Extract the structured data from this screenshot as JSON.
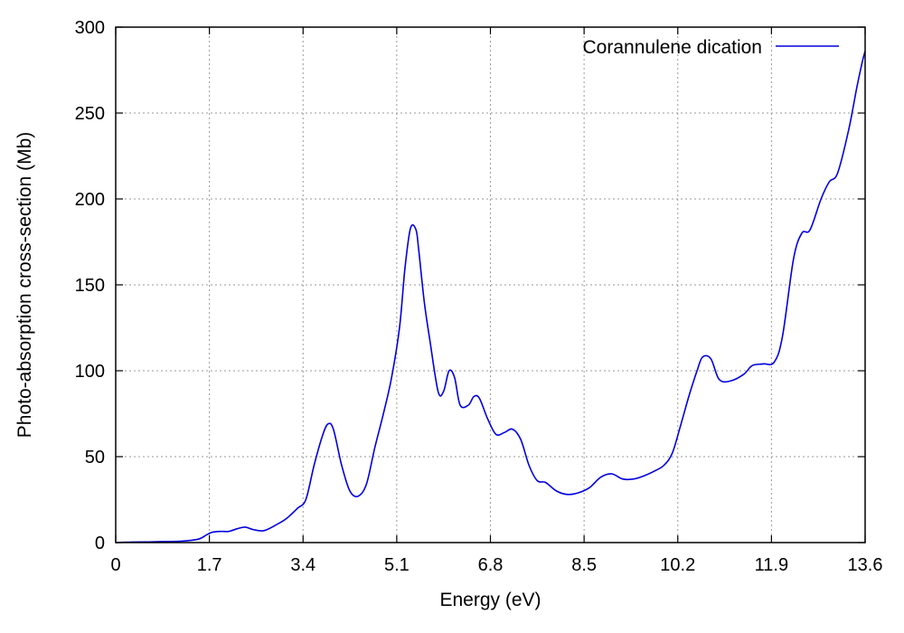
{
  "chart_data": {
    "type": "line",
    "title": "",
    "xlabel": "Energy (eV)",
    "ylabel": "Photo-absorption cross-section (Mb)",
    "xlim": [
      0,
      13.6
    ],
    "ylim": [
      0,
      300
    ],
    "xticks": [
      0,
      1.7,
      3.4,
      5.1,
      6.8,
      8.5,
      10.2,
      11.9,
      13.6
    ],
    "xtick_labels": [
      "0",
      "1.7",
      "3.4",
      "5.1",
      "6.8",
      "8.5",
      "10.2",
      "11.9",
      "13.6"
    ],
    "yticks": [
      0,
      50,
      100,
      150,
      200,
      250,
      300
    ],
    "ytick_labels": [
      "0",
      "50",
      "100",
      "150",
      "200",
      "250",
      "300"
    ],
    "grid": true,
    "legend_position": "top-right",
    "color": "#0000e0",
    "series": [
      {
        "name": "Corannulene dication",
        "x": [
          0.0,
          0.3,
          0.6,
          0.9,
          1.2,
          1.5,
          1.65,
          1.75,
          1.9,
          2.05,
          2.2,
          2.35,
          2.5,
          2.7,
          2.95,
          3.1,
          3.3,
          3.45,
          3.6,
          3.75,
          3.85,
          3.95,
          4.1,
          4.25,
          4.4,
          4.55,
          4.7,
          4.85,
          5.0,
          5.15,
          5.25,
          5.35,
          5.45,
          5.5,
          5.6,
          5.7,
          5.85,
          5.95,
          6.05,
          6.15,
          6.25,
          6.4,
          6.5,
          6.6,
          6.75,
          6.9,
          7.05,
          7.2,
          7.35,
          7.5,
          7.65,
          7.8,
          8.0,
          8.2,
          8.4,
          8.6,
          8.8,
          9.0,
          9.2,
          9.4,
          9.6,
          9.8,
          9.95,
          10.1,
          10.25,
          10.4,
          10.55,
          10.65,
          10.8,
          10.95,
          11.15,
          11.4,
          11.55,
          11.75,
          11.95,
          12.1,
          12.3,
          12.45,
          12.6,
          12.8,
          12.95,
          13.1,
          13.3,
          13.45,
          13.55,
          13.6
        ],
        "y": [
          0,
          0.3,
          0.4,
          0.6,
          0.8,
          2,
          4.5,
          6,
          6.5,
          6.5,
          8,
          9,
          7.5,
          7,
          11,
          14,
          20,
          25,
          45,
          62,
          69,
          66,
          45,
          30,
          27,
          34,
          55,
          74,
          95,
          125,
          160,
          183,
          182,
          170,
          140,
          118,
          88,
          88,
          100,
          96,
          80,
          80,
          85,
          84,
          72,
          63,
          64,
          66,
          60,
          45,
          36,
          35,
          30,
          28,
          29,
          32,
          38,
          40,
          37,
          37,
          39,
          42,
          45,
          52,
          68,
          85,
          100,
          108,
          107,
          95,
          94,
          98,
          103,
          104,
          105,
          120,
          165,
          180,
          182,
          200,
          210,
          215,
          240,
          265,
          280,
          286
        ]
      }
    ]
  }
}
